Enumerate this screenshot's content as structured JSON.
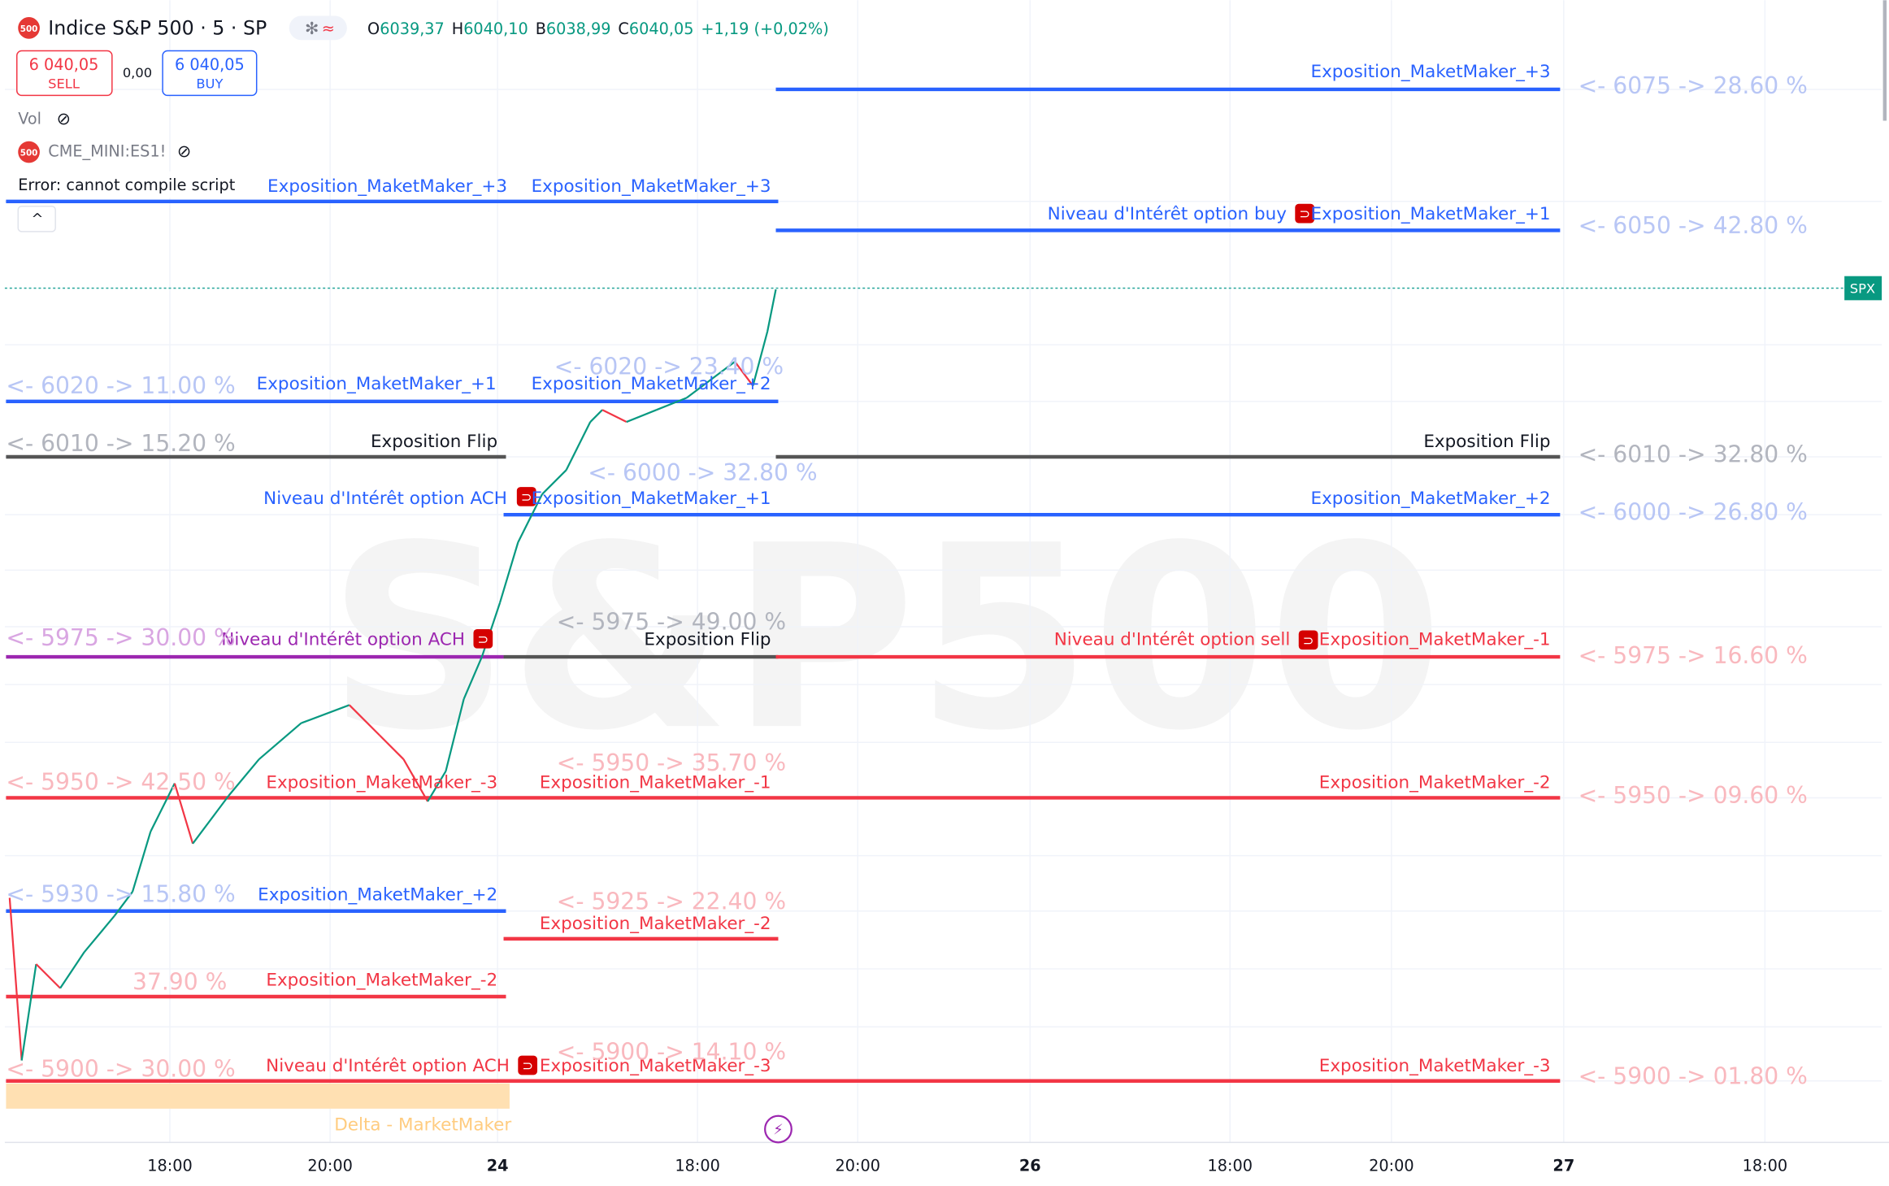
{
  "header": {
    "logo": "500",
    "symbol": "Indice S&P 500 · 5 · SP",
    "ohlc": [
      {
        "label": "O",
        "value": "6039,37"
      },
      {
        "label": "H",
        "value": "6040,10"
      },
      {
        "label": "B",
        "value": "6038,99"
      },
      {
        "label": "C",
        "value": "6040,05"
      }
    ],
    "change": "+1,19 (+0,02%)"
  },
  "trade": {
    "sell_price": "6 040,05",
    "sell": "SELL",
    "spread": "0,00",
    "buy_price": "6 040,05",
    "buy": "BUY"
  },
  "indicators": {
    "volume": "Vol",
    "logo": "500",
    "symbol": "CME_MINI:ES1!",
    "error": "Error: cannot compile script"
  },
  "watermark": "S&P500",
  "price_tag": "SPX",
  "level_labels": [
    "Exposition_MaketMaker_+3",
    "Exposition_MaketMaker_+3",
    "Exposition_MaketMaker_+3",
    "Niveau d'Intérêt option buy",
    "Exposition_MaketMaker_+1",
    "Exposition_MaketMaker_+1",
    "Exposition_MaketMaker_+2",
    "Exposition Flip",
    "Exposition Flip",
    "Niveau d'Intérêt option ACH",
    "Exposition_MaketMaker_+1",
    "Exposition_MaketMaker_+2",
    "Niveau d'Intérêt option ACH",
    "Exposition Flip",
    "Niveau d'Intérêt option sell",
    "Exposition_MaketMaker_-1",
    "Exposition_MaketMaker_-3",
    "Exposition_MaketMaker_-1",
    "Exposition_MaketMaker_-2",
    "Exposition_MaketMaker_+2",
    "Exposition_MaketMaker_-2",
    "Exposition_MaketMaker_-2",
    "Niveau d'Intérêt option ACH",
    "Exposition_MaketMaker_-3",
    "Exposition_MaketMaker_-3",
    "Delta - MarketMaker"
  ],
  "level_stats": [
    "<- 6075 -> 28.60 %",
    "<- 6050 -> 42.80 %",
    "<- 6010 -> 32.80 %",
    "<- 6000 -> 26.80 %",
    "<- 5975 -> 16.60 %",
    "<- 5950 -> 09.60 %",
    "<- 5900 -> 01.80 %",
    "<- 6020 -> 11.00 %",
    "<- 6010 -> 15.20 %",
    "<- 5975 -> 30.00 %",
    "<- 5950 -> 42.50 %",
    "<- 5930 -> 15.80 %",
    "37.90 %",
    "<- 5900 -> 30.00 %",
    "<- 6020 -> 23.40 %",
    "<- 6000 -> 32.80 %",
    "<- 5975 -> 49.00 %",
    "<- 5950 -> 35.70 %",
    "<- 5925 -> 22.40 %",
    "<- 5900 -> 14.10 %"
  ],
  "x_axis": [
    "18:00",
    "20:00",
    "24",
    "18:00",
    "20:00",
    "26",
    "18:00",
    "20:00",
    "27",
    "18:00"
  ]
}
